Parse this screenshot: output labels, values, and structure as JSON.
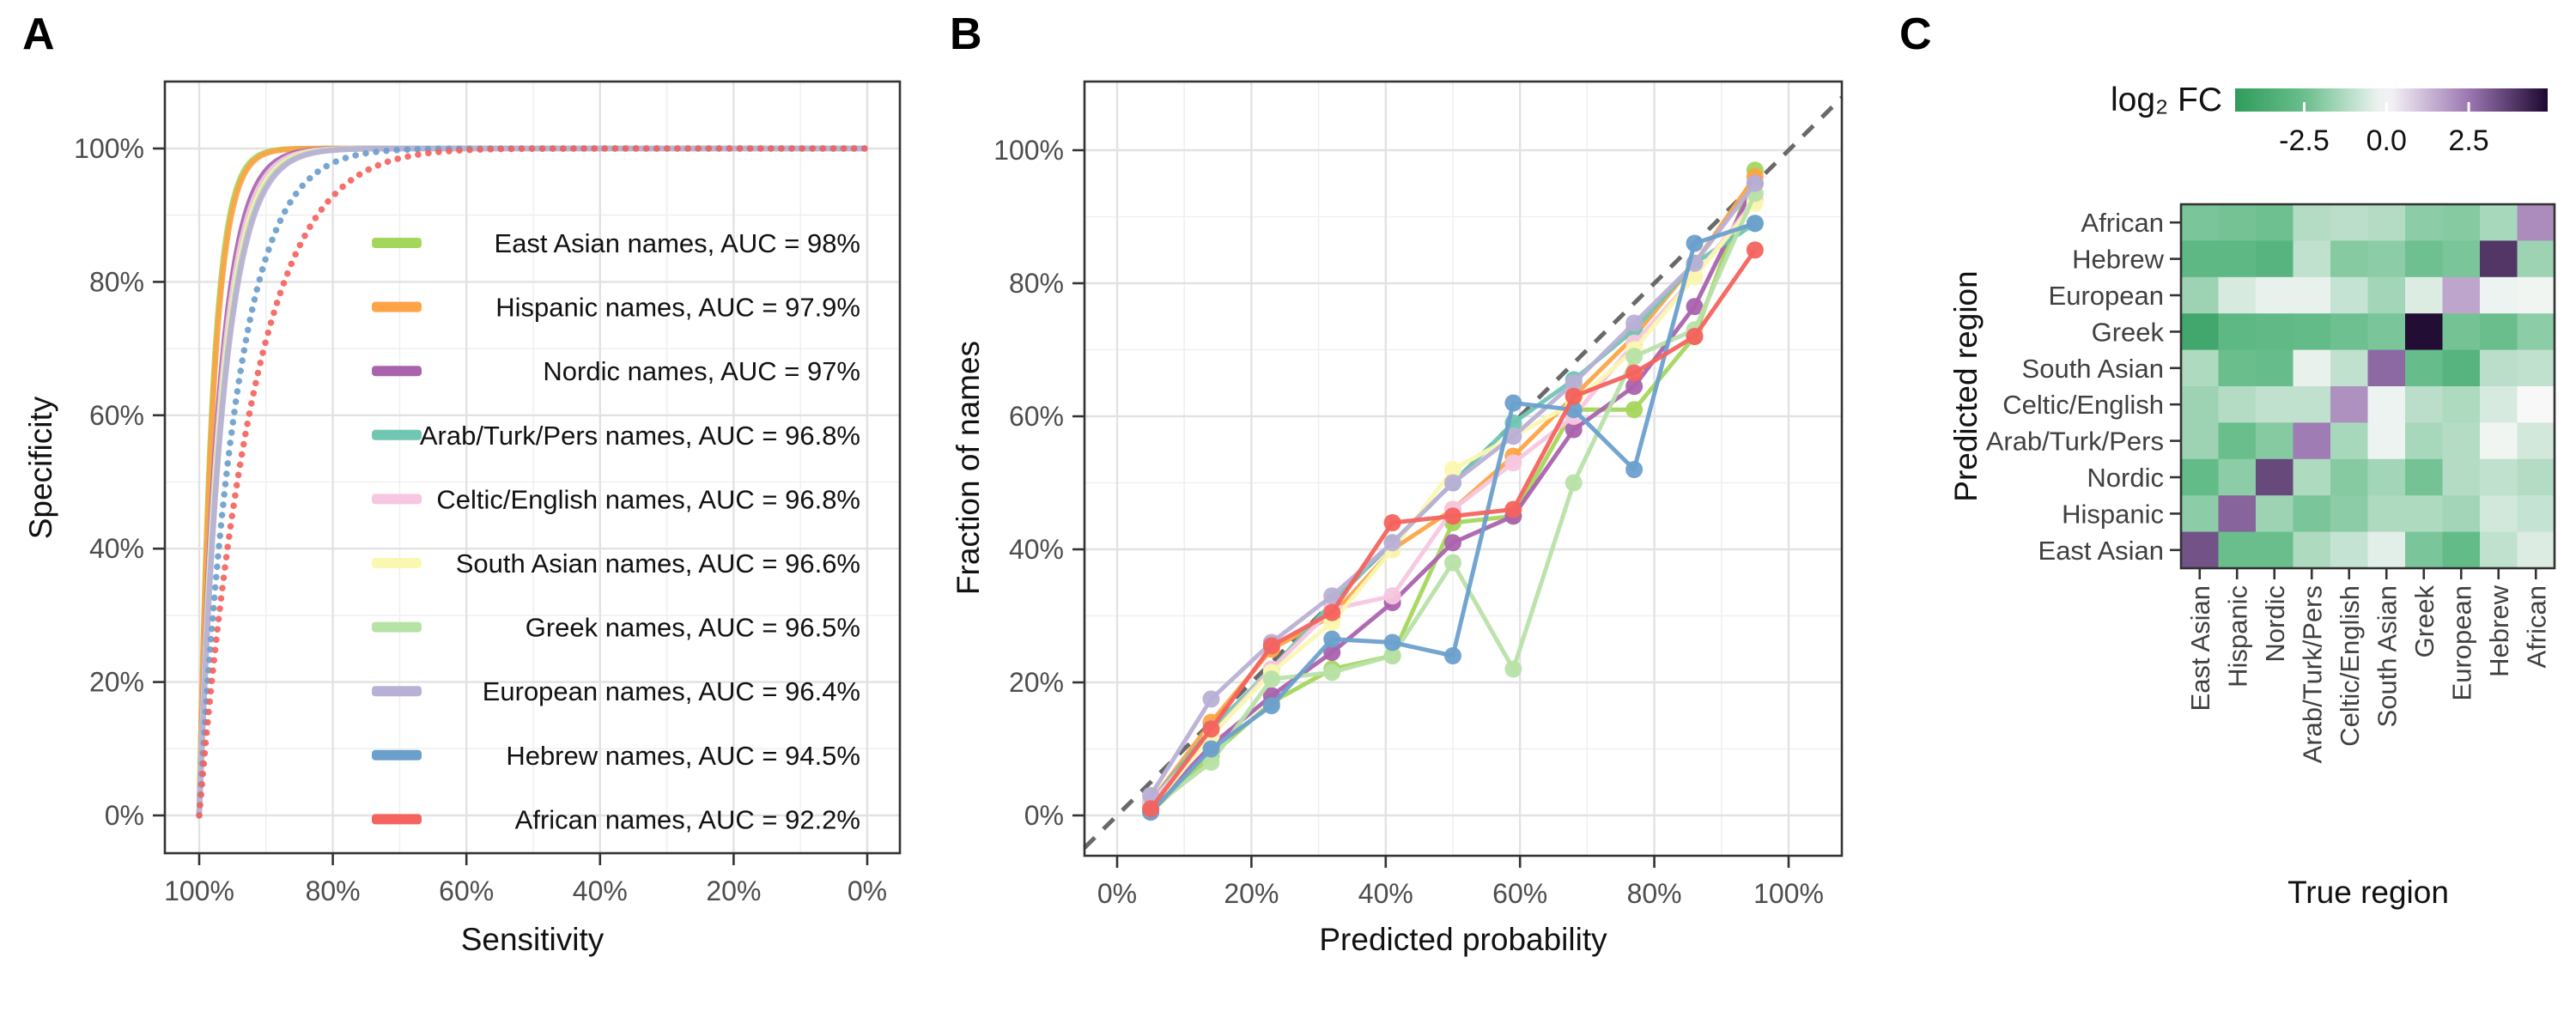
{
  "panels": {
    "a": {
      "label": "A",
      "x_title": "Sensitivity",
      "y_title": "Specificity",
      "x_ticks": [
        "100%",
        "80%",
        "60%",
        "40%",
        "20%",
        "0%"
      ],
      "y_ticks": [
        "0%",
        "20%",
        "40%",
        "60%",
        "80%",
        "100%"
      ]
    },
    "b": {
      "label": "B",
      "x_title": "Predicted probability",
      "y_title": "Fraction of names",
      "x_ticks": [
        "0%",
        "20%",
        "40%",
        "60%",
        "80%",
        "100%"
      ],
      "y_ticks": [
        "0%",
        "20%",
        "40%",
        "60%",
        "80%",
        "100%"
      ]
    },
    "c": {
      "label": "C",
      "x_title": "True region",
      "y_title": "Predicted region",
      "colorbar_title": "log₂ FC"
    }
  },
  "chart_data": [
    {
      "type": "line",
      "name": "roc-curves",
      "title": "",
      "xlabel": "Sensitivity",
      "ylabel": "Specificity",
      "x_range_percent": [
        100,
        0
      ],
      "y_range_percent": [
        0,
        100
      ],
      "x_axis_reversed": true,
      "grid": "on",
      "legend_position": "inside-right",
      "series": [
        {
          "name": "East Asian",
          "legend_label": "East Asian names, AUC = 98%",
          "auc": 98.0,
          "color": "#A5D65C",
          "linetype": "solid"
        },
        {
          "name": "Hispanic",
          "legend_label": "Hispanic names, AUC = 97.9%",
          "auc": 97.9,
          "color": "#FCA446",
          "linetype": "solid"
        },
        {
          "name": "Nordic",
          "legend_label": "Nordic names, AUC = 97%",
          "auc": 97.0,
          "color": "#AB63AE",
          "linetype": "solid"
        },
        {
          "name": "Arab/Turk/Pers",
          "legend_label": "Arab/Turk/Pers names, AUC = 96.8%",
          "auc": 96.8,
          "color": "#70C6B1",
          "linetype": "solid"
        },
        {
          "name": "Celtic/English",
          "legend_label": "Celtic/English names, AUC = 96.8%",
          "auc": 96.8,
          "color": "#F7C6E0",
          "linetype": "solid"
        },
        {
          "name": "South Asian",
          "legend_label": "South Asian names, AUC = 96.6%",
          "auc": 96.6,
          "color": "#FAF8B0",
          "linetype": "solid"
        },
        {
          "name": "Greek",
          "legend_label": "Greek names, AUC = 96.5%",
          "auc": 96.5,
          "color": "#B7E2A6",
          "linetype": "solid"
        },
        {
          "name": "European",
          "legend_label": "European names, AUC = 96.4%",
          "auc": 96.4,
          "color": "#B9B0D6",
          "linetype": "solid"
        },
        {
          "name": "Hebrew",
          "legend_label": "Hebrew names, AUC = 94.5%",
          "auc": 94.5,
          "color": "#6BA0CD",
          "linetype": "dotted"
        },
        {
          "name": "African",
          "legend_label": "African names, AUC = 92.2%",
          "auc": 92.2,
          "color": "#F4635E",
          "linetype": "dotted"
        }
      ]
    },
    {
      "type": "line",
      "name": "calibration",
      "xlabel": "Predicted probability",
      "ylabel": "Fraction of names",
      "x": [
        5,
        14,
        23,
        32,
        41,
        50,
        59,
        68,
        77,
        86,
        95
      ],
      "xlim": [
        0,
        100
      ],
      "ylim": [
        0,
        100
      ],
      "grid": "on",
      "reference_line": {
        "type": "dashed-diagonal",
        "color": "#696969"
      },
      "markers": true,
      "series": [
        {
          "name": "East Asian",
          "color": "#A5D65C",
          "values": [
            0.5,
            9,
            17,
            22,
            24,
            44,
            45,
            61,
            61,
            72,
            97
          ]
        },
        {
          "name": "Hispanic",
          "color": "#FCA446",
          "values": [
            2,
            14,
            25,
            30,
            40,
            46,
            54,
            63,
            72,
            83,
            96
          ]
        },
        {
          "name": "Nordic",
          "color": "#AB63AE",
          "values": [
            1,
            10.5,
            18,
            24.5,
            32,
            41,
            45,
            58,
            64.5,
            76.5,
            95
          ]
        },
        {
          "name": "Arab/Turk/Pers",
          "color": "#70C6B1",
          "values": [
            2,
            13,
            22,
            32,
            41,
            50,
            59,
            65.5,
            73,
            83,
            89
          ]
        },
        {
          "name": "Celtic/English",
          "color": "#F7C6E0",
          "values": [
            2,
            12,
            22,
            31,
            33,
            46,
            53,
            60,
            71,
            81,
            92.5
          ]
        },
        {
          "name": "South Asian",
          "color": "#FAF8B0",
          "values": [
            1,
            12,
            21.5,
            29,
            40,
            52,
            57,
            62,
            70,
            81,
            92
          ]
        },
        {
          "name": "Greek",
          "color": "#B7E2A6",
          "values": [
            1,
            8,
            20.5,
            21.5,
            24,
            38,
            22,
            50,
            69,
            73,
            93.5
          ]
        },
        {
          "name": "European",
          "color": "#B9B0D6",
          "values": [
            3,
            17.5,
            26,
            33,
            41,
            50,
            57,
            65,
            74,
            83,
            95
          ]
        },
        {
          "name": "Hebrew",
          "color": "#6BA0CD",
          "values": [
            0.5,
            10,
            16.5,
            26.5,
            26,
            24,
            62,
            61,
            52,
            86,
            89
          ]
        },
        {
          "name": "African",
          "color": "#F4635E",
          "values": [
            1,
            13,
            25.5,
            30.5,
            44,
            45,
            46,
            63,
            66.5,
            72,
            85
          ]
        }
      ]
    },
    {
      "type": "heatmap",
      "name": "confusion-log2fc",
      "xlabel": "True region",
      "ylabel": "Predicted region",
      "rows_top_to_bottom": [
        "African",
        "Hebrew",
        "European",
        "Greek",
        "South Asian",
        "Celtic/English",
        "Arab/Turk/Pers",
        "Nordic",
        "Hispanic",
        "East Asian"
      ],
      "cols_left_to_right": [
        "East Asian",
        "Hispanic",
        "Nordic",
        "Arab/Turk/Pers",
        "Celtic/English",
        "South Asian",
        "Greek",
        "European",
        "Hebrew",
        "African"
      ],
      "values": [
        [
          -2.2,
          -2.3,
          -2.4,
          -1.2,
          -1.1,
          -1.2,
          -1.9,
          -2.0,
          -1.4,
          2.1
        ],
        [
          -2.9,
          -2.9,
          -3.1,
          -1.0,
          -2.0,
          -1.9,
          -2.4,
          -2.2,
          3.9,
          -1.6
        ],
        [
          -1.6,
          -0.6,
          -0.3,
          -0.3,
          -0.9,
          -1.5,
          -0.5,
          1.6,
          -0.2,
          -0.15
        ],
        [
          -3.9,
          -2.9,
          -2.8,
          -2.7,
          -2.4,
          -2.2,
          4.8,
          -2.3,
          -2.5,
          -1.9
        ],
        [
          -1.3,
          -2.5,
          -2.6,
          -0.3,
          -1.0,
          2.8,
          -2.6,
          -3.1,
          -1.1,
          -1.0
        ],
        [
          -1.6,
          -1.2,
          -1.0,
          -1.0,
          2.0,
          -0.2,
          -1.1,
          -1.3,
          -0.6,
          0.0
        ],
        [
          -1.6,
          -2.5,
          -2.0,
          2.4,
          -1.4,
          -0.2,
          -1.4,
          -1.2,
          -0.15,
          -0.7
        ],
        [
          -2.7,
          -1.9,
          3.5,
          -1.3,
          -2.0,
          -1.5,
          -2.3,
          -1.2,
          -1.0,
          -1.2
        ],
        [
          -1.9,
          2.9,
          -1.6,
          -2.2,
          -1.9,
          -1.3,
          -1.3,
          -1.5,
          -0.7,
          -0.9
        ],
        [
          3.3,
          -2.5,
          -2.5,
          -1.3,
          -0.9,
          -0.4,
          -2.2,
          -2.7,
          -1.0,
          -0.5
        ]
      ],
      "colorbar": {
        "title": "log₂ FC",
        "tick_labels": [
          "-2.5",
          "0.0",
          "2.5"
        ],
        "tick_values": [
          -2.5,
          0.0,
          2.5
        ],
        "domain": [
          -4.6,
          4.9
        ],
        "colors": {
          "negative_end": "#2F9C5C",
          "negative_mid": "#69BE8C",
          "mid": "#F9F8F9",
          "positive_mid": "#9C77B2",
          "positive_end": "#1D0830"
        }
      }
    }
  ]
}
